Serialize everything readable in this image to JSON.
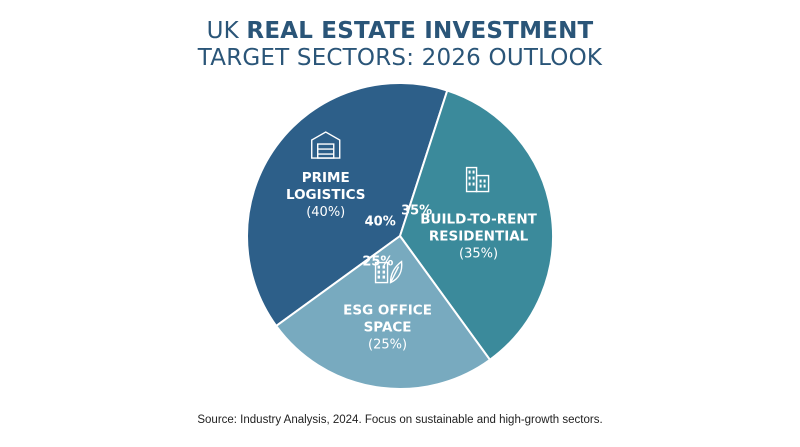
{
  "title": {
    "line1_prefix": "UK ",
    "line1_bold": "REAL ESTATE INVESTMENT",
    "line2": "TARGET SECTORS: 2026 OUTLOOK"
  },
  "chart_data": {
    "type": "pie",
    "title": "UK REAL ESTATE INVESTMENT TARGET SECTORS: 2026 OUTLOOK",
    "slices": [
      {
        "label_lines": [
          "PRIME",
          "LOGISTICS"
        ],
        "value": 40,
        "pct_label": "(40%)",
        "value_label": "40%",
        "color": "#2d5f89",
        "icon": "warehouse-icon"
      },
      {
        "label_lines": [
          "BUILD-TO-RENT",
          "RESIDENTIAL"
        ],
        "value": 35,
        "pct_label": "(35%)",
        "value_label": "35%",
        "color": "#3b8a9b",
        "icon": "apartment-building-icon"
      },
      {
        "label_lines": [
          "ESG OFFICE",
          "SPACE"
        ],
        "value": 25,
        "pct_label": "(25%)",
        "value_label": "25%",
        "color": "#78aabf",
        "icon": "eco-office-icon"
      }
    ]
  },
  "source": "Source: Industry Analysis, 2024. Focus on sustainable and high-growth sectors."
}
